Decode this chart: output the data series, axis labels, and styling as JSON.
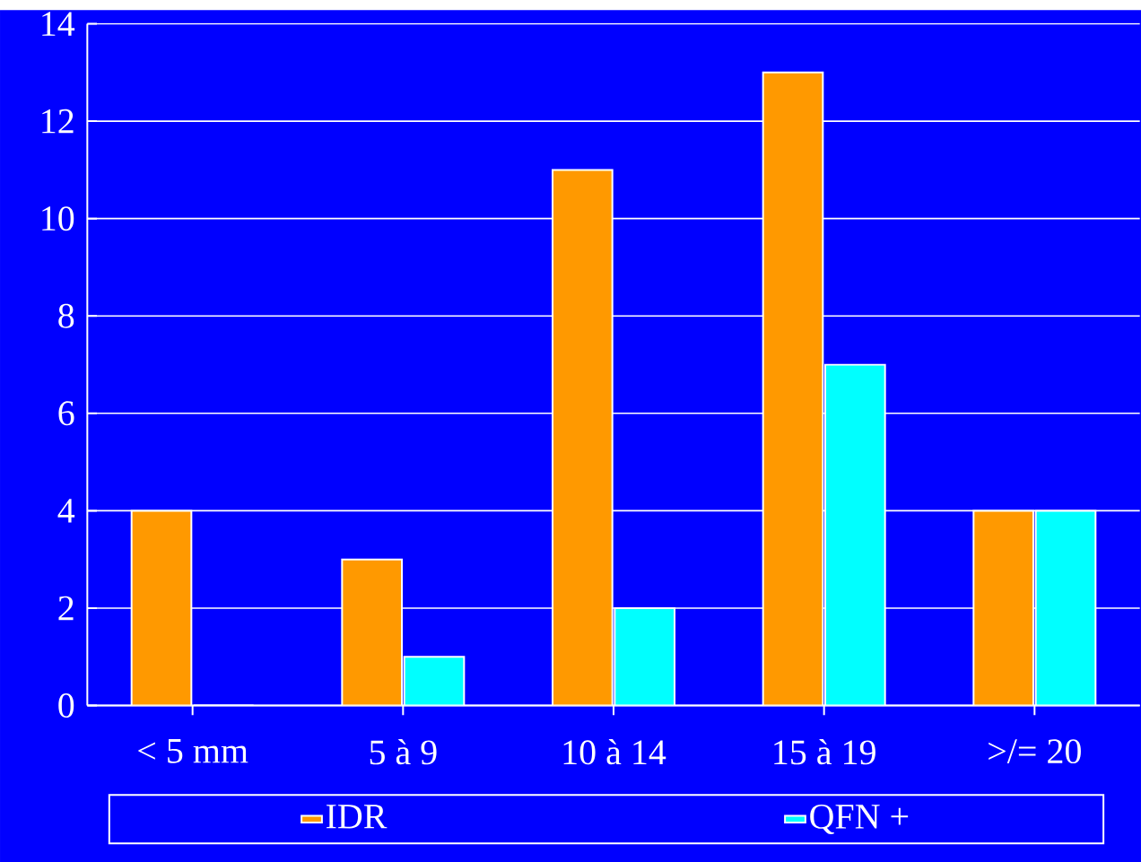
{
  "chart_data": {
    "type": "bar",
    "categories": [
      "< 5 mm",
      "5 à 9",
      "10 à 14",
      "15 à 19",
      ">/= 20"
    ],
    "series": [
      {
        "name": "IDR",
        "color": "#ff9900",
        "values": [
          4,
          3,
          11,
          13,
          4
        ]
      },
      {
        "name": "QFN +",
        "color": "#00ffff",
        "values": [
          0,
          1,
          2,
          7,
          4
        ]
      }
    ],
    "ylim": [
      0,
      14
    ],
    "yticks": [
      0,
      2,
      4,
      6,
      8,
      10,
      12,
      14
    ],
    "grid": "y",
    "legend": "bottom"
  }
}
